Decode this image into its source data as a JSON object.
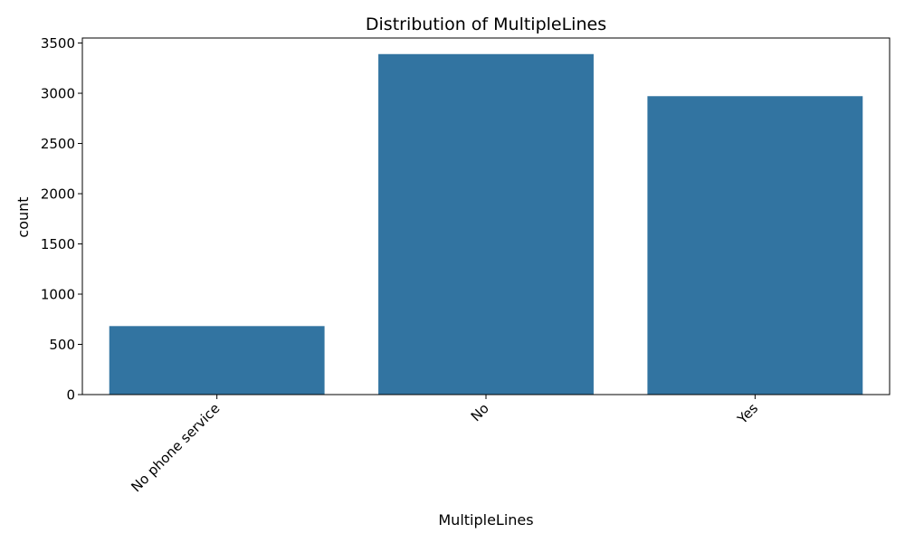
{
  "chart_data": {
    "type": "bar",
    "title": "Distribution of MultipleLines",
    "xlabel": "MultipleLines",
    "ylabel": "count",
    "categories": [
      "No phone service",
      "No",
      "Yes"
    ],
    "values": [
      682,
      3390,
      2971
    ],
    "ylim": [
      0,
      3550
    ],
    "yticks": [
      0,
      500,
      1000,
      1500,
      2000,
      2500,
      3000,
      3500
    ],
    "grid": false,
    "legend": "none",
    "bar_color": "#3274a1",
    "x_tick_rotation": 45
  }
}
